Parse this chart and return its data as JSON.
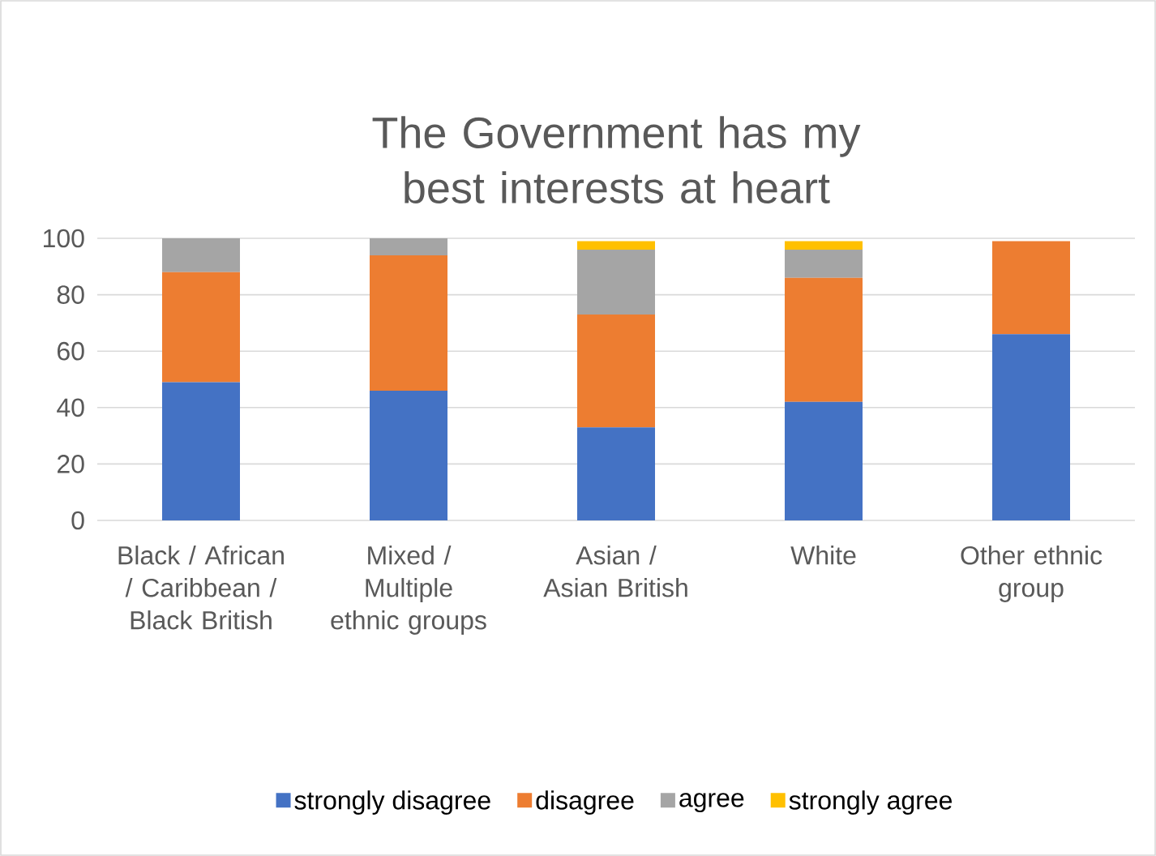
{
  "chart_data": {
    "type": "bar",
    "stacked": true,
    "title": "The Government has my best interests at heart",
    "categories": [
      "Black / African / Caribbean / Black British",
      "Mixed / Multiple ethnic groups",
      "Asian / Asian British",
      "White",
      "Other ethnic group"
    ],
    "series": [
      {
        "name": "strongly disagree",
        "color": "#4472c4",
        "values": [
          49,
          46,
          33,
          42,
          66
        ]
      },
      {
        "name": "disagree",
        "color": "#ed7d31",
        "values": [
          39,
          48,
          40,
          44,
          33
        ]
      },
      {
        "name": "agree",
        "color": "#a5a5a5",
        "values": [
          12,
          6,
          23,
          10,
          null
        ]
      },
      {
        "name": "strongly agree",
        "color": "#ffc000",
        "values": [
          null,
          null,
          3,
          3,
          null
        ]
      }
    ],
    "ylim": [
      0,
      100
    ],
    "yticks": [
      0,
      20,
      40,
      60,
      80,
      100
    ],
    "grid": "y",
    "legend": "bottom"
  }
}
